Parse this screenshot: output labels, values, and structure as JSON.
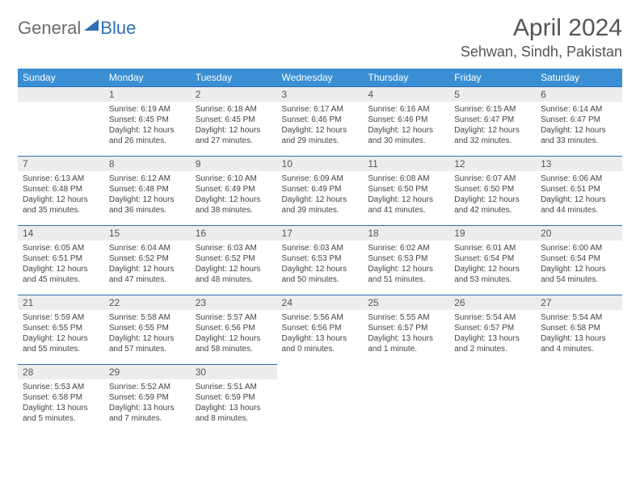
{
  "logo": {
    "part1": "General",
    "part2": "Blue"
  },
  "title": "April 2024",
  "location": "Sehwan, Sindh, Pakistan",
  "weekdays": [
    "Sunday",
    "Monday",
    "Tuesday",
    "Wednesday",
    "Thursday",
    "Friday",
    "Saturday"
  ],
  "colors": {
    "header_bg": "#3a8fd4",
    "accent": "#2f6fb5",
    "daybar_bg": "#ededed",
    "text": "#444"
  },
  "start_weekday": 1,
  "days": [
    {
      "n": 1,
      "sunrise": "6:19 AM",
      "sunset": "6:45 PM",
      "dl": "12 hours and 26 minutes."
    },
    {
      "n": 2,
      "sunrise": "6:18 AM",
      "sunset": "6:45 PM",
      "dl": "12 hours and 27 minutes."
    },
    {
      "n": 3,
      "sunrise": "6:17 AM",
      "sunset": "6:46 PM",
      "dl": "12 hours and 29 minutes."
    },
    {
      "n": 4,
      "sunrise": "6:16 AM",
      "sunset": "6:46 PM",
      "dl": "12 hours and 30 minutes."
    },
    {
      "n": 5,
      "sunrise": "6:15 AM",
      "sunset": "6:47 PM",
      "dl": "12 hours and 32 minutes."
    },
    {
      "n": 6,
      "sunrise": "6:14 AM",
      "sunset": "6:47 PM",
      "dl": "12 hours and 33 minutes."
    },
    {
      "n": 7,
      "sunrise": "6:13 AM",
      "sunset": "6:48 PM",
      "dl": "12 hours and 35 minutes."
    },
    {
      "n": 8,
      "sunrise": "6:12 AM",
      "sunset": "6:48 PM",
      "dl": "12 hours and 36 minutes."
    },
    {
      "n": 9,
      "sunrise": "6:10 AM",
      "sunset": "6:49 PM",
      "dl": "12 hours and 38 minutes."
    },
    {
      "n": 10,
      "sunrise": "6:09 AM",
      "sunset": "6:49 PM",
      "dl": "12 hours and 39 minutes."
    },
    {
      "n": 11,
      "sunrise": "6:08 AM",
      "sunset": "6:50 PM",
      "dl": "12 hours and 41 minutes."
    },
    {
      "n": 12,
      "sunrise": "6:07 AM",
      "sunset": "6:50 PM",
      "dl": "12 hours and 42 minutes."
    },
    {
      "n": 13,
      "sunrise": "6:06 AM",
      "sunset": "6:51 PM",
      "dl": "12 hours and 44 minutes."
    },
    {
      "n": 14,
      "sunrise": "6:05 AM",
      "sunset": "6:51 PM",
      "dl": "12 hours and 45 minutes."
    },
    {
      "n": 15,
      "sunrise": "6:04 AM",
      "sunset": "6:52 PM",
      "dl": "12 hours and 47 minutes."
    },
    {
      "n": 16,
      "sunrise": "6:03 AM",
      "sunset": "6:52 PM",
      "dl": "12 hours and 48 minutes."
    },
    {
      "n": 17,
      "sunrise": "6:03 AM",
      "sunset": "6:53 PM",
      "dl": "12 hours and 50 minutes."
    },
    {
      "n": 18,
      "sunrise": "6:02 AM",
      "sunset": "6:53 PM",
      "dl": "12 hours and 51 minutes."
    },
    {
      "n": 19,
      "sunrise": "6:01 AM",
      "sunset": "6:54 PM",
      "dl": "12 hours and 53 minutes."
    },
    {
      "n": 20,
      "sunrise": "6:00 AM",
      "sunset": "6:54 PM",
      "dl": "12 hours and 54 minutes."
    },
    {
      "n": 21,
      "sunrise": "5:59 AM",
      "sunset": "6:55 PM",
      "dl": "12 hours and 55 minutes."
    },
    {
      "n": 22,
      "sunrise": "5:58 AM",
      "sunset": "6:55 PM",
      "dl": "12 hours and 57 minutes."
    },
    {
      "n": 23,
      "sunrise": "5:57 AM",
      "sunset": "6:56 PM",
      "dl": "12 hours and 58 minutes."
    },
    {
      "n": 24,
      "sunrise": "5:56 AM",
      "sunset": "6:56 PM",
      "dl": "13 hours and 0 minutes."
    },
    {
      "n": 25,
      "sunrise": "5:55 AM",
      "sunset": "6:57 PM",
      "dl": "13 hours and 1 minute."
    },
    {
      "n": 26,
      "sunrise": "5:54 AM",
      "sunset": "6:57 PM",
      "dl": "13 hours and 2 minutes."
    },
    {
      "n": 27,
      "sunrise": "5:54 AM",
      "sunset": "6:58 PM",
      "dl": "13 hours and 4 minutes."
    },
    {
      "n": 28,
      "sunrise": "5:53 AM",
      "sunset": "6:58 PM",
      "dl": "13 hours and 5 minutes."
    },
    {
      "n": 29,
      "sunrise": "5:52 AM",
      "sunset": "6:59 PM",
      "dl": "13 hours and 7 minutes."
    },
    {
      "n": 30,
      "sunrise": "5:51 AM",
      "sunset": "6:59 PM",
      "dl": "13 hours and 8 minutes."
    }
  ],
  "labels": {
    "sunrise": "Sunrise:",
    "sunset": "Sunset:",
    "daylight": "Daylight:"
  }
}
